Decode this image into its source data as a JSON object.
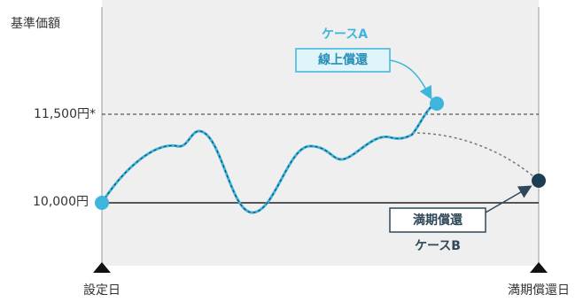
{
  "axis": {
    "y_label": "基準価額",
    "y_upper": "11,500円*",
    "y_lower": "10,000円",
    "x_start": "設定日",
    "x_end": "満期償還日"
  },
  "case_a": {
    "title": "ケースA",
    "label": "線上償還"
  },
  "case_b": {
    "title": "ケースB",
    "label": "満期償還"
  }
}
